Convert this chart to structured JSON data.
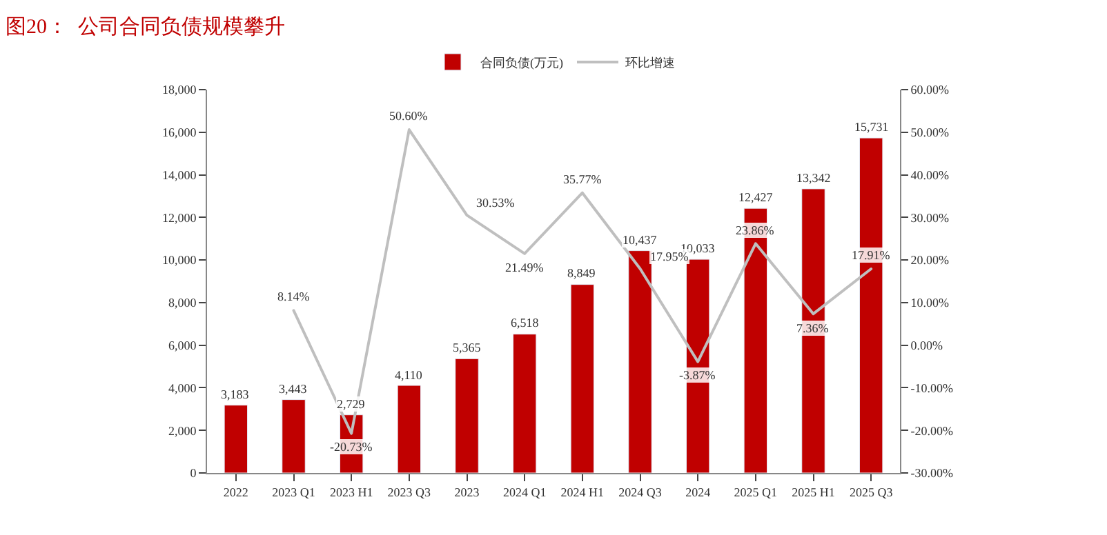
{
  "chart_data": {
    "type": "bar",
    "title": "图20：  公司合同负债规模攀升",
    "categories": [
      "2022",
      "2023 Q1",
      "2023 H1",
      "2023 Q3",
      "2023",
      "2024 Q1",
      "2024 H1",
      "2024 Q3",
      "2024",
      "2025 Q1",
      "2025 H1",
      "2025 Q3"
    ],
    "series": [
      {
        "name": "合同负债(万元)",
        "color": "#c00000",
        "values": [
          3183,
          3443,
          2729,
          4110,
          5365,
          6518,
          8849,
          10437,
          10033,
          12427,
          13342,
          15731
        ],
        "value_labels": [
          "3,183",
          "3,443",
          "2,729",
          "4,110",
          "5,365",
          "6,518",
          "8,849",
          "10,437",
          "10,033",
          "12,427",
          "13,342",
          "15,731"
        ]
      },
      {
        "name": "环比增速",
        "type": "line",
        "axis": "y2",
        "color": "#bfbfbf",
        "values": [
          null,
          8.14,
          -20.73,
          50.6,
          30.53,
          21.49,
          35.77,
          17.95,
          -3.87,
          23.86,
          7.36,
          17.91
        ],
        "value_labels": [
          null,
          "8.14%",
          "-20.73%",
          "50.60%",
          "30.53%",
          "21.49%",
          "35.77%",
          "17.95%",
          "-3.87%",
          "23.86%",
          "7.36%",
          "17.91%"
        ]
      }
    ],
    "ylim": [
      0,
      18000
    ],
    "yticks": [
      0,
      {
        "value": 2000,
        "label": "2,000"
      },
      {
        "value": 4000,
        "label": "4,000"
      },
      {
        "value": 6000,
        "label": "6,000"
      },
      {
        "value": 8000,
        "label": "8,000"
      },
      {
        "value": 10000,
        "label": "10,000"
      },
      {
        "value": 12000,
        "label": "12,000"
      },
      {
        "value": 14000,
        "label": "14,000"
      },
      {
        "value": 16000,
        "label": "16,000"
      },
      {
        "value": 18000,
        "label": "18,000"
      }
    ],
    "y2lim": [
      -30,
      60
    ],
    "y2ticks": [
      {
        "value": -30,
        "label": "-30.00%"
      },
      {
        "value": -20,
        "label": "-20.00%"
      },
      {
        "value": -10,
        "label": "-10.00%"
      },
      {
        "value": 0,
        "label": "0.00%"
      },
      {
        "value": 10,
        "label": "10.00%"
      },
      {
        "value": 20,
        "label": "20.00%"
      },
      {
        "value": 30,
        "label": "30.00%"
      },
      {
        "value": 40,
        "label": "40.00%"
      },
      {
        "value": 50,
        "label": "50.00%"
      },
      {
        "value": 60,
        "label": "60.00%"
      }
    ],
    "legend": "top"
  }
}
